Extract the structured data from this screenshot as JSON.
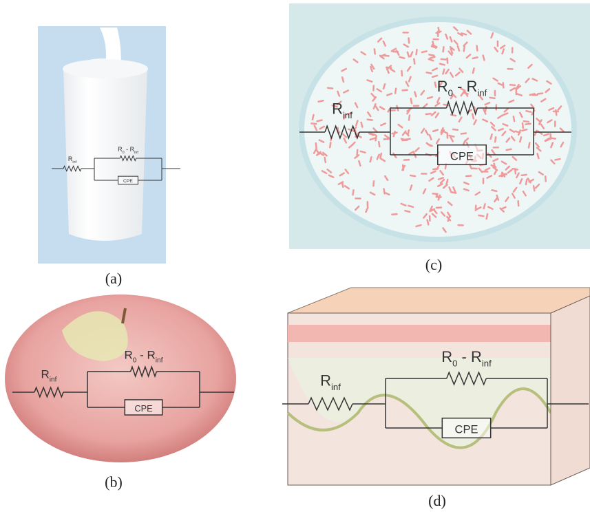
{
  "panels": [
    {
      "label": "(a)",
      "r_inf": [
        "R",
        "inf"
      ],
      "r_diff": [
        "R",
        "0",
        " - R",
        "inf"
      ],
      "cpe": "CPE"
    },
    {
      "label": "(b)",
      "r_inf": [
        "R",
        "inf"
      ],
      "r_diff": [
        "R",
        "0",
        " - R",
        "inf"
      ],
      "cpe": "CPE"
    },
    {
      "label": "(c)",
      "r_inf": [
        "R",
        "inf"
      ],
      "r_diff": [
        "R",
        "0",
        " - R",
        "inf"
      ],
      "cpe": "CPE"
    },
    {
      "label": "(d)",
      "r_inf": [
        "R",
        "inf"
      ],
      "r_diff": [
        "R",
        "0",
        " - R",
        "inf"
      ],
      "cpe": "CPE"
    }
  ]
}
